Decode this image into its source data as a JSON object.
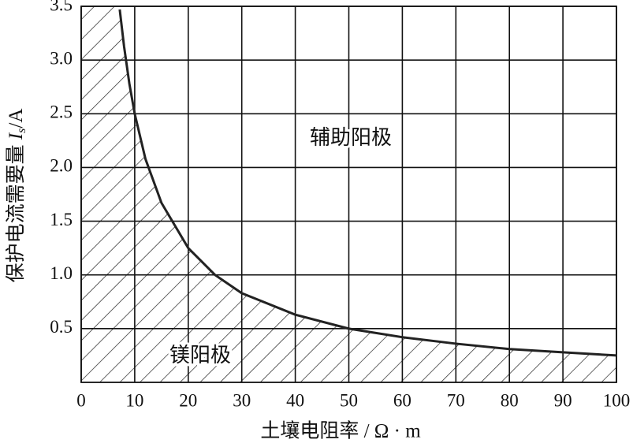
{
  "chart_data": {
    "type": "line",
    "xlabel": "土壤电阻率 / Ω · m",
    "ylabel": {
      "prefix": "保护电流需要量 ",
      "symbol": "I",
      "subscript": "s",
      "unit": "/A"
    },
    "x": [
      7.2,
      8,
      9,
      10,
      12,
      15,
      20,
      25,
      30,
      40,
      50,
      60,
      70,
      80,
      90,
      100
    ],
    "series": [
      {
        "color": "#222222",
        "values": [
          3.47,
          3.13,
          2.78,
          2.5,
          2.08,
          1.67,
          1.25,
          1.0,
          0.83,
          0.63,
          0.5,
          0.42,
          0.36,
          0.31,
          0.28,
          0.25
        ]
      }
    ],
    "xlim": [
      0,
      100
    ],
    "xticks": [
      0,
      10,
      20,
      30,
      40,
      50,
      60,
      70,
      80,
      90,
      100
    ],
    "ylim": [
      0,
      3.5
    ],
    "yticks": [
      0.5,
      {
        "value": 1,
        "label": "1.0"
      },
      1.5,
      {
        "value": 2,
        "label": "2.0"
      },
      2.5,
      {
        "value": 3,
        "label": "3.0"
      },
      3.5
    ],
    "grid": true,
    "hatch_below": true,
    "annotations": [
      {
        "text": "辅助阳极"
      },
      {
        "text": "镁阳极"
      }
    ]
  }
}
